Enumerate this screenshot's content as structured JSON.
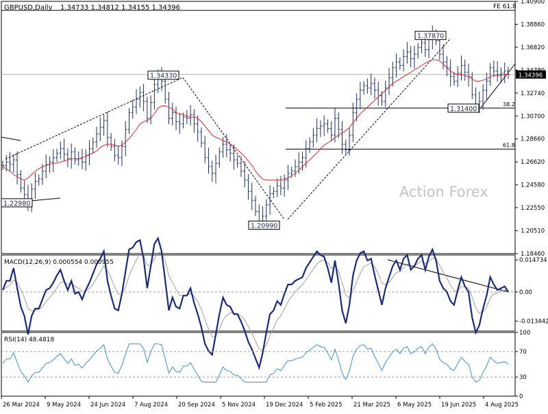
{
  "chart_data": {
    "type": "line",
    "header": {
      "symbol": "GBPUSD,Daily",
      "ohlc": "1.34733 1.34812 1.34155 1.34396"
    },
    "price_panel": {
      "y_ticks": [
        "1.40900",
        "1.38860",
        "1.36820",
        "1.34780",
        "1.32740",
        "1.30700",
        "1.28660",
        "1.26620",
        "1.24580",
        "1.22550",
        "1.20510",
        "1.18460"
      ],
      "ylim": [
        1.1846,
        1.409
      ],
      "last_price_label": "1.34396",
      "last_price": 1.34396,
      "watermark": "Action Forex",
      "series": [
        {
          "name": "price",
          "color": "#1a2e63",
          "style": "bars",
          "values": [
            1.263,
            1.266,
            1.264,
            1.268,
            1.255,
            1.243,
            1.237,
            1.229,
            1.242,
            1.249,
            1.251,
            1.258,
            1.264,
            1.266,
            1.27,
            1.274,
            1.278,
            1.273,
            1.269,
            1.275,
            1.268,
            1.269,
            1.266,
            1.272,
            1.278,
            1.284,
            1.291,
            1.297,
            1.303,
            1.288,
            1.28,
            1.272,
            1.27,
            1.28,
            1.295,
            1.31,
            1.315,
            1.322,
            1.328,
            1.32,
            1.305,
            1.319,
            1.335,
            1.343,
            1.338,
            1.322,
            1.305,
            1.31,
            1.302,
            1.3,
            1.306,
            1.305,
            1.308,
            1.3,
            1.293,
            1.283,
            1.27,
            1.262,
            1.256,
            1.265,
            1.275,
            1.282,
            1.277,
            1.274,
            1.268,
            1.265,
            1.258,
            1.25,
            1.24,
            1.232,
            1.222,
            1.213,
            1.218,
            1.228,
            1.238,
            1.24,
            1.245,
            1.243,
            1.25,
            1.256,
            1.258,
            1.262,
            1.266,
            1.27,
            1.278,
            1.284,
            1.29,
            1.296,
            1.298,
            1.3,
            1.296,
            1.29,
            1.305,
            1.295,
            1.282,
            1.277,
            1.29,
            1.31,
            1.322,
            1.33,
            1.334,
            1.332,
            1.336,
            1.33,
            1.325,
            1.32,
            1.332,
            1.341,
            1.35,
            1.355,
            1.352,
            1.36,
            1.364,
            1.358,
            1.362,
            1.368,
            1.372,
            1.366,
            1.375,
            1.38,
            1.374,
            1.362,
            1.355,
            1.35,
            1.342,
            1.338,
            1.345,
            1.352,
            1.346,
            1.342,
            1.326,
            1.316,
            1.32,
            1.33,
            1.338,
            1.35,
            1.347,
            1.344,
            1.345,
            1.347,
            1.344
          ]
        },
        {
          "name": "MA",
          "color": "#e8262a",
          "style": "line",
          "values": [
            1.262,
            1.26,
            1.258,
            1.255,
            1.253,
            1.251,
            1.25,
            1.252,
            1.255,
            1.258,
            1.26,
            1.262,
            1.263,
            1.264,
            1.265,
            1.265,
            1.266,
            1.267,
            1.268,
            1.269,
            1.269,
            1.269,
            1.27,
            1.271,
            1.273,
            1.274,
            1.276,
            1.279,
            1.281,
            1.282,
            1.282,
            1.281,
            1.28,
            1.281,
            1.284,
            1.287,
            1.291,
            1.295,
            1.3,
            1.302,
            1.303,
            1.305,
            1.309,
            1.314,
            1.316,
            1.316,
            1.315,
            1.313,
            1.31,
            1.309,
            1.308,
            1.307,
            1.306,
            1.306,
            1.305,
            1.302,
            1.298,
            1.294,
            1.29,
            1.288,
            1.287,
            1.285,
            1.284,
            1.282,
            1.28,
            1.277,
            1.274,
            1.271,
            1.267,
            1.263,
            1.258,
            1.254,
            1.251,
            1.25,
            1.25,
            1.25,
            1.25,
            1.25,
            1.251,
            1.252,
            1.254,
            1.256,
            1.259,
            1.262,
            1.265,
            1.268,
            1.271,
            1.274,
            1.278,
            1.281,
            1.283,
            1.285,
            1.288,
            1.29,
            1.292,
            1.294,
            1.297,
            1.301,
            1.305,
            1.309,
            1.312,
            1.315,
            1.318,
            1.321,
            1.324,
            1.327,
            1.33,
            1.333,
            1.336,
            1.338,
            1.34,
            1.342,
            1.344,
            1.346,
            1.348,
            1.35,
            1.352,
            1.354,
            1.356,
            1.357,
            1.357,
            1.356,
            1.353,
            1.35,
            1.347,
            1.345,
            1.344,
            1.344,
            1.343,
            1.342,
            1.34,
            1.338,
            1.338,
            1.339,
            1.34,
            1.342,
            1.343,
            1.343,
            1.343,
            1.344,
            1.344
          ]
        }
      ],
      "swing_labels": [
        {
          "text": "1.22980",
          "value": 1.2298
        },
        {
          "text": "1.34330",
          "value": 1.3433
        },
        {
          "text": "1.20990",
          "value": 1.2099
        },
        {
          "text": "1.37870",
          "value": 1.3787
        },
        {
          "text": "1.31400",
          "value": 1.314
        }
      ],
      "levels": [
        {
          "label": "FE 61.8",
          "value": 1.401
        },
        {
          "label": "38.2",
          "value": 1.314
        },
        {
          "label": "61.8",
          "value": 1.2775
        }
      ]
    },
    "macd_panel": {
      "label": "MACD(12,26,9) 0.000554 0.000955",
      "y_ticks": [
        "0.014734",
        "0.00",
        "-0.013442"
      ],
      "ylim": [
        -0.018,
        0.017
      ]
    },
    "rsi_panel": {
      "label": "RSI(14) 48.4818",
      "y_ticks": [
        "100",
        "70",
        "30",
        "0"
      ],
      "ylim": [
        0,
        100
      ],
      "levels": [
        70,
        30
      ]
    },
    "x_ticks": [
      "26 Mar 2024",
      "9 May 2024",
      "24 Jun 2024",
      "7 Aug 2024",
      "20 Sep 2024",
      "5 Nov 2024",
      "19 Dec 2024",
      "5 Feb 2025",
      "21 Mar 2025",
      "6 May 2025",
      "19 Jun 2025",
      "4 Aug 2025"
    ]
  }
}
